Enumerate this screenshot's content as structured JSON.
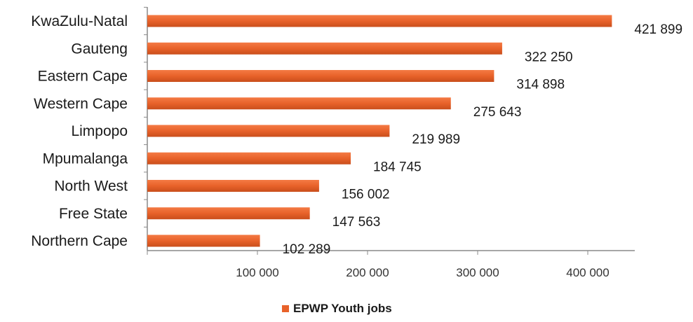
{
  "chart_data": {
    "type": "bar",
    "orientation": "horizontal",
    "categories": [
      "KwaZulu-Natal",
      "Gauteng",
      "Eastern Cape",
      "Western Cape",
      "Limpopo",
      "Mpumalanga",
      "North West",
      "Free State",
      "Northern Cape"
    ],
    "series": [
      {
        "name": "EPWP Youth jobs",
        "color": "#E8622A",
        "values": [
          421899,
          322250,
          314898,
          275643,
          219989,
          184745,
          156002,
          147563,
          102289
        ],
        "value_labels": [
          "421 899",
          "322 250",
          "314 898",
          "275 643",
          "219 989",
          "184 745",
          "156 002",
          "147 563",
          "102 289"
        ]
      }
    ],
    "x_ticks": [
      {
        "value": 100000,
        "label": "100 000"
      },
      {
        "value": 200000,
        "label": "200 000"
      },
      {
        "value": 300000,
        "label": "300 000"
      },
      {
        "value": 400000,
        "label": "400 000"
      }
    ],
    "xlim": [
      0,
      450000
    ],
    "grid": false,
    "legend": "bottom-center",
    "title": "",
    "xlabel": "",
    "ylabel": ""
  }
}
